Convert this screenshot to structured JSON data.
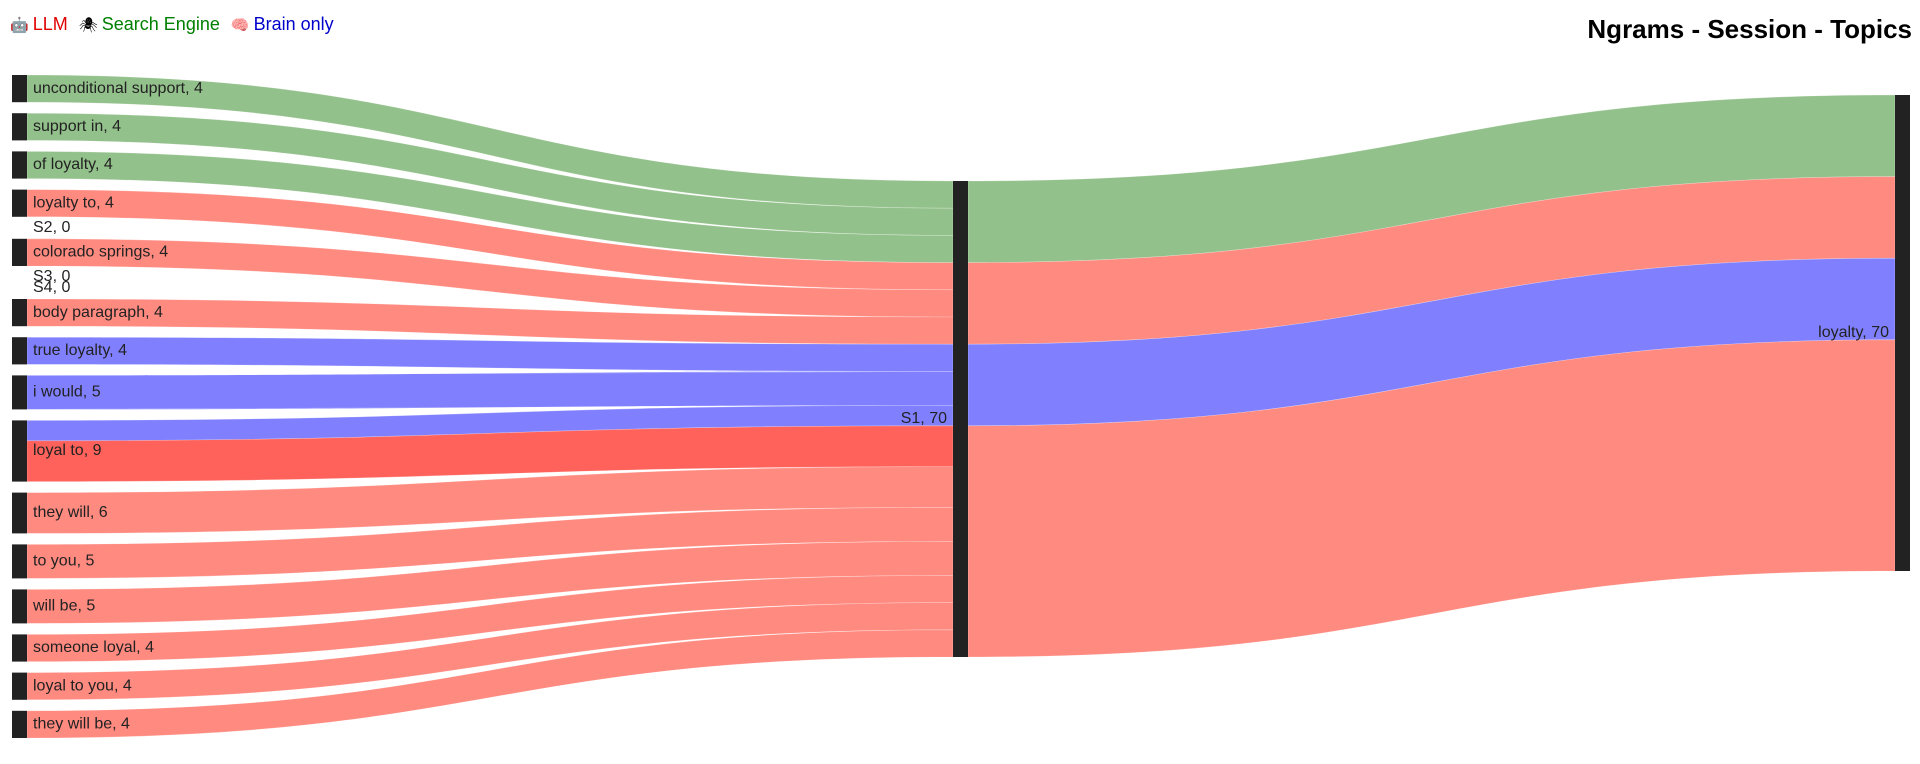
{
  "legend": [
    {
      "icon": "robot-icon",
      "glyph": "🤖",
      "label": "LLM",
      "color": "#e00000"
    },
    {
      "icon": "spider-icon",
      "glyph": "🕷",
      "label": "Search Engine",
      "color": "#008000"
    },
    {
      "icon": "brain-icon",
      "glyph": "🧠",
      "label": "Brain only",
      "color": "#0000cc"
    }
  ],
  "colors": {
    "LLM": "#ff8a80",
    "Search Engine": "#93c18b",
    "Brain only": "#8080ff",
    "highlight": "#ff5a52",
    "node": "#222222"
  },
  "chart_data": {
    "type": "sankey",
    "title": "Ngrams - Session - Topics",
    "nodes": [
      {
        "id": "unconditional support",
        "label": "unconditional support, 4",
        "value": 4,
        "column": 0
      },
      {
        "id": "support in",
        "label": "support in, 4",
        "value": 4,
        "column": 0
      },
      {
        "id": "of loyalty",
        "label": "of loyalty, 4",
        "value": 4,
        "column": 0
      },
      {
        "id": "loyalty to",
        "label": "loyalty to, 4",
        "value": 4,
        "column": 0
      },
      {
        "id": "S2",
        "label": "S2, 0",
        "value": 0,
        "column": 0
      },
      {
        "id": "colorado springs",
        "label": "colorado springs, 4",
        "value": 4,
        "column": 0
      },
      {
        "id": "S3",
        "label": "S3, 0",
        "value": 0,
        "column": 0
      },
      {
        "id": "S4",
        "label": "S4, 0",
        "value": 0,
        "column": 0
      },
      {
        "id": "body paragraph",
        "label": "body paragraph, 4",
        "value": 4,
        "column": 0
      },
      {
        "id": "true loyalty",
        "label": "true loyalty, 4",
        "value": 4,
        "column": 0
      },
      {
        "id": "i would",
        "label": "i would, 5",
        "value": 5,
        "column": 0
      },
      {
        "id": "loyal to",
        "label": "loyal to, 9",
        "value": 9,
        "column": 0
      },
      {
        "id": "they will",
        "label": "they will, 6",
        "value": 6,
        "column": 0
      },
      {
        "id": "to you",
        "label": "to you, 5",
        "value": 5,
        "column": 0
      },
      {
        "id": "will be",
        "label": "will be, 5",
        "value": 5,
        "column": 0
      },
      {
        "id": "someone loyal",
        "label": "someone loyal, 4",
        "value": 4,
        "column": 0
      },
      {
        "id": "loyal to you",
        "label": "loyal to you, 4",
        "value": 4,
        "column": 0
      },
      {
        "id": "they will be",
        "label": "they will be, 4",
        "value": 4,
        "column": 0
      },
      {
        "id": "S1",
        "label": "S1, 70",
        "value": 70,
        "column": 1
      },
      {
        "id": "loyalty",
        "label": "loyalty, 70",
        "value": 70,
        "column": 2
      }
    ],
    "links": [
      {
        "source": "unconditional support",
        "target": "S1",
        "value": 4,
        "group": "Search Engine"
      },
      {
        "source": "support in",
        "target": "S1",
        "value": 4,
        "group": "Search Engine"
      },
      {
        "source": "of loyalty",
        "target": "S1",
        "value": 4,
        "group": "Search Engine"
      },
      {
        "source": "loyalty to",
        "target": "S1",
        "value": 4,
        "group": "LLM"
      },
      {
        "source": "colorado springs",
        "target": "S1",
        "value": 4,
        "group": "LLM"
      },
      {
        "source": "body paragraph",
        "target": "S1",
        "value": 4,
        "group": "LLM"
      },
      {
        "source": "true loyalty",
        "target": "S1",
        "value": 4,
        "group": "Brain only"
      },
      {
        "source": "i would",
        "target": "S1",
        "value": 5,
        "group": "Brain only"
      },
      {
        "source": "loyal to",
        "target": "S1",
        "value": 3,
        "group": "Brain only"
      },
      {
        "source": "loyal to",
        "target": "S1",
        "value": 6,
        "group": "LLM",
        "highlight": true
      },
      {
        "source": "they will",
        "target": "S1",
        "value": 6,
        "group": "LLM"
      },
      {
        "source": "to you",
        "target": "S1",
        "value": 5,
        "group": "LLM"
      },
      {
        "source": "will be",
        "target": "S1",
        "value": 5,
        "group": "LLM"
      },
      {
        "source": "someone loyal",
        "target": "S1",
        "value": 4,
        "group": "LLM"
      },
      {
        "source": "loyal to you",
        "target": "S1",
        "value": 4,
        "group": "LLM"
      },
      {
        "source": "they will be",
        "target": "S1",
        "value": 4,
        "group": "LLM"
      },
      {
        "source": "S1",
        "target": "loyalty",
        "value": 12,
        "group": "Search Engine"
      },
      {
        "source": "S1",
        "target": "loyalty",
        "value": 12,
        "group": "LLM"
      },
      {
        "source": "S1",
        "target": "loyalty",
        "value": 12,
        "group": "Brain only"
      },
      {
        "source": "S1",
        "target": "loyalty",
        "value": 34,
        "group": "LLM"
      }
    ]
  }
}
